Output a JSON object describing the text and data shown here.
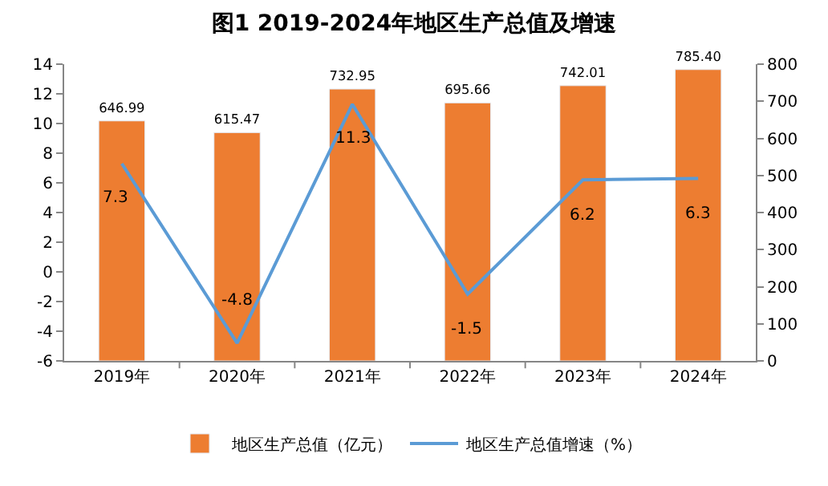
{
  "chart_data": {
    "type": "bar",
    "title": "图1 2019-2024年地区生产总值及增速",
    "categories": [
      "2019年",
      "2020年",
      "2021年",
      "2022年",
      "2023年",
      "2024年"
    ],
    "series": [
      {
        "name": "地区生产总值（亿元）",
        "axis": "y2",
        "color": "#ed7d31",
        "values": [
          646.99,
          615.47,
          732.95,
          695.66,
          742.01,
          785.4
        ],
        "value_labels": [
          "646.99",
          "615.47",
          "732.95",
          "695.66",
          "742.01",
          "785.40"
        ]
      },
      {
        "name": "地区生产总值增速（%）",
        "type": "line",
        "axis": "y",
        "color": "#5b9bd5",
        "values": [
          7.3,
          -4.8,
          11.3,
          -1.5,
          6.2,
          6.3
        ],
        "value_labels": [
          "7.3",
          "-4.8",
          "11.3",
          "-1.5",
          "6.2",
          "6.3"
        ]
      }
    ],
    "ylim": [
      -6,
      14
    ],
    "yticks": [
      -6,
      -4,
      -2,
      0,
      2,
      4,
      6,
      8,
      10,
      12,
      14
    ],
    "y2lim": [
      0,
      800
    ],
    "y2ticks": [
      0,
      100,
      200,
      300,
      400,
      500,
      600,
      700,
      800
    ],
    "legend": "bottom",
    "marker": "none",
    "line_style": "solid"
  }
}
